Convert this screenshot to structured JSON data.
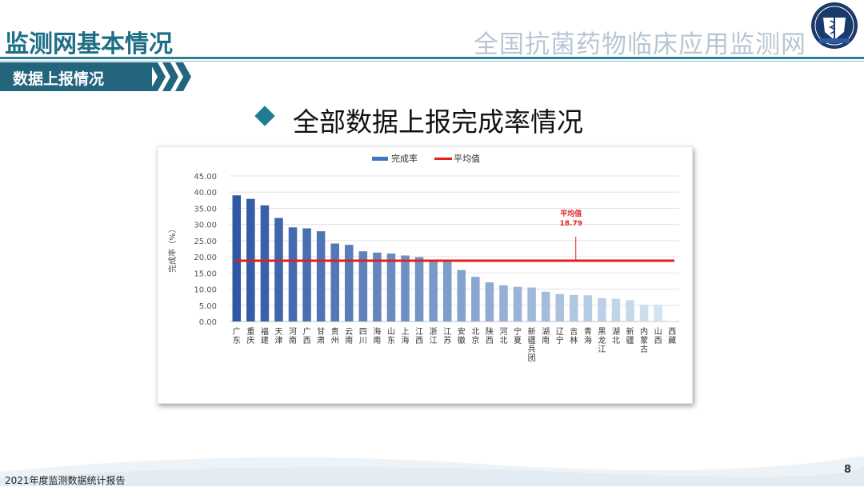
{
  "header": {
    "section_title": "监测网基本情况",
    "network_title": "全国抗菌药物临床应用监测网",
    "logo_icon": "caduceus-shield-logo"
  },
  "subsection": {
    "label": "数据上报情况"
  },
  "slide": {
    "title": "全部数据上报完成率情况"
  },
  "chart_data": {
    "type": "bar",
    "legend": [
      {
        "name": "完成率",
        "color": "#4472c4",
        "kind": "bar"
      },
      {
        "name": "平均值",
        "color": "#e02020",
        "kind": "line"
      }
    ],
    "legend_position": "top-center",
    "ylabel": "完成率（%）",
    "ylim": [
      0,
      45
    ],
    "yticks": [
      "0.00",
      "5.00",
      "10.00",
      "15.00",
      "20.00",
      "25.00",
      "30.00",
      "35.00",
      "40.00",
      "45.00"
    ],
    "grid": true,
    "categories": [
      "广东",
      "重庆",
      "福建",
      "天津",
      "河南",
      "广西",
      "甘肃",
      "贵州",
      "云南",
      "四川",
      "海南",
      "山东",
      "上海",
      "江西",
      "浙江",
      "江苏",
      "安徽",
      "北京",
      "陕西",
      "河北",
      "宁夏",
      "新疆兵团",
      "湖南",
      "辽宁",
      "吉林",
      "青海",
      "黑龙江",
      "湖北",
      "新疆",
      "内蒙古",
      "山西",
      "西藏"
    ],
    "values": [
      39.0,
      37.9,
      35.9,
      32.0,
      29.1,
      28.8,
      27.9,
      24.1,
      23.7,
      21.7,
      21.3,
      21.0,
      20.4,
      19.9,
      18.9,
      18.7,
      15.9,
      13.8,
      12.1,
      11.2,
      10.7,
      10.5,
      9.2,
      8.5,
      8.2,
      8.1,
      7.2,
      7.0,
      6.6,
      5.2,
      5.2,
      0.1
    ],
    "average": {
      "value": 18.79,
      "label": "平均值",
      "value_label": "18.79",
      "color": "#e02020"
    },
    "bar_color_dark": "#2e58a6",
    "bar_color_light": "#d6e7f3"
  },
  "footer": {
    "report_name": "2021年度监测数据统计报告",
    "page_number": "8"
  }
}
